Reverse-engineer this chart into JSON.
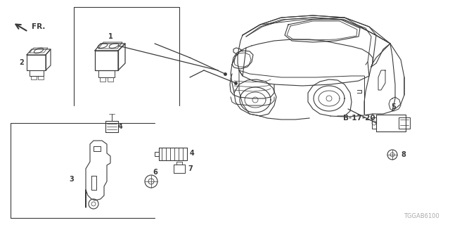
{
  "bg_color": "#ffffff",
  "line_color": "#3a3a3a",
  "title_code": "TGGAB6100",
  "fr_label": "FR.",
  "ref_label": "B-17-20",
  "fig_w": 6.4,
  "fig_h": 3.2,
  "dpi": 100
}
